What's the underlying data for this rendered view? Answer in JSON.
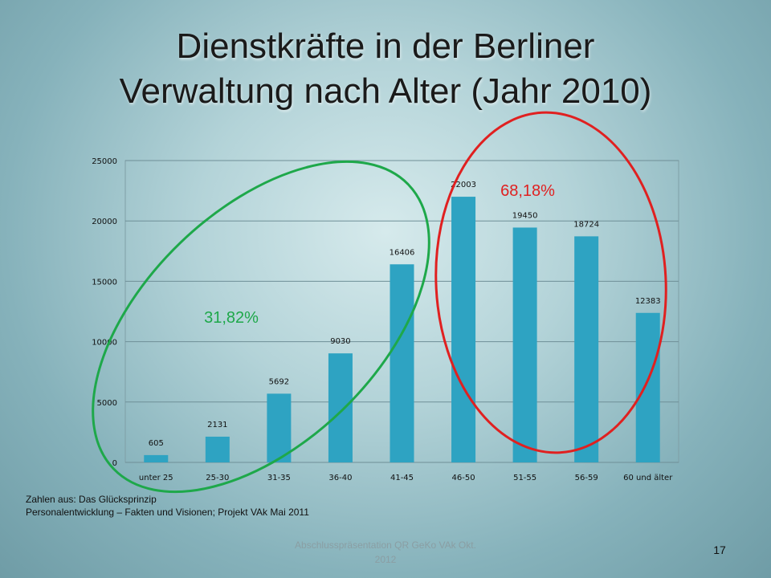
{
  "title_lines": [
    "Dienstkräfte in der Berliner",
    "Verwaltung nach Alter (Jahr 2010)"
  ],
  "chart_data": {
    "type": "bar",
    "categories": [
      "unter 25",
      "25-30",
      "31-35",
      "36-40",
      "41-45",
      "46-50",
      "51-55",
      "56-59",
      "60 und älter"
    ],
    "values": [
      605,
      2131,
      5692,
      9030,
      16406,
      22003,
      19450,
      18724,
      12383
    ],
    "data_labels": [
      "605",
      "2131",
      "5692",
      "9030",
      "16406",
      "22003",
      "19450",
      "18724",
      "12383"
    ],
    "ylim": [
      0,
      25000
    ],
    "yticks": [
      0,
      5000,
      10000,
      15000,
      20000,
      25000
    ],
    "ytick_labels": [
      "0",
      "5000",
      "10000",
      "15000",
      "20000",
      "25000"
    ],
    "grid": true,
    "bar_color": "#2ea3c2",
    "annotations": [
      {
        "text": "31,82%",
        "color": "#1ea84a",
        "group": [
          "unter 25",
          "25-30",
          "31-35",
          "36-40",
          "41-45"
        ]
      },
      {
        "text": "68,18%",
        "color": "#e02020",
        "group": [
          "46-50",
          "51-55",
          "56-59",
          "60 und älter"
        ]
      }
    ]
  },
  "source_lines": [
    "Zahlen aus: Das Glücksprinzip",
    "Personalentwicklung – Fakten und Visionen; Projekt VAk Mai 2011"
  ],
  "footer_lines": [
    "Abschlusspräsentation QR GeKo VAk Okt.",
    "2012"
  ],
  "page_number": "17"
}
